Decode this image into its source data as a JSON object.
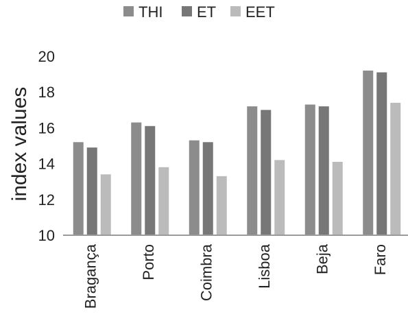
{
  "chart_data": {
    "type": "bar",
    "title": "",
    "xlabel": "",
    "ylabel": "index values",
    "ylim": [
      10,
      20
    ],
    "yticks": [
      "10",
      "12",
      "14",
      "16",
      "18",
      "20"
    ],
    "grid": false,
    "legend_position": "top",
    "categories": [
      "Bragança",
      "Porto",
      "Coimbra",
      "Lisboa",
      "Beja",
      "Faro"
    ],
    "series": [
      {
        "name": "THI",
        "color": "#8c8c8c",
        "values": [
          15.2,
          16.3,
          15.3,
          17.2,
          17.3,
          19.2
        ]
      },
      {
        "name": "ET",
        "color": "#777777",
        "values": [
          14.9,
          16.1,
          15.2,
          17.0,
          17.2,
          19.1
        ]
      },
      {
        "name": "EET",
        "color": "#bbbbbb",
        "values": [
          13.4,
          13.8,
          13.3,
          14.2,
          14.1,
          17.4
        ]
      }
    ]
  }
}
